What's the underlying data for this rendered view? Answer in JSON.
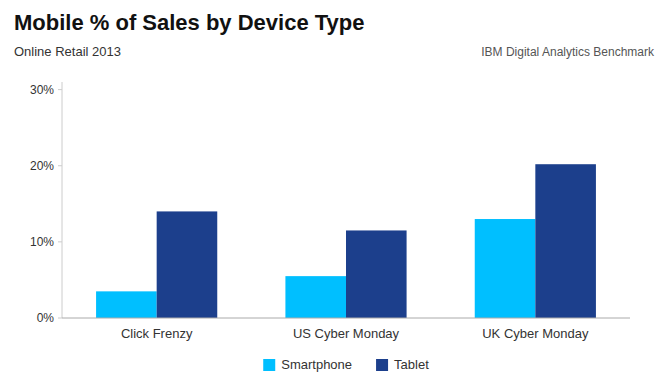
{
  "chart_data": {
    "type": "bar",
    "title": "Mobile % of Sales by Device Type",
    "subtitle": "Online Retail 2013",
    "source": "IBM Digital Analytics Benchmark",
    "categories": [
      "Click Frenzy",
      "US Cyber Monday",
      "UK Cyber Monday"
    ],
    "series": [
      {
        "name": "Smartphone",
        "color": "#00BFFF",
        "values": [
          0.035,
          0.055,
          0.13
        ]
      },
      {
        "name": "Tablet",
        "color": "#1C3F8C",
        "values": [
          0.14,
          0.115,
          0.202
        ]
      }
    ],
    "ylim": [
      0,
      0.31
    ],
    "yticks": [
      {
        "value": 0.0,
        "label": "0%"
      },
      {
        "value": 0.1,
        "label": "10%"
      },
      {
        "value": 0.2,
        "label": "20%"
      },
      {
        "value": 0.3,
        "label": "30%"
      }
    ],
    "grid": false,
    "legend": "bottom"
  }
}
